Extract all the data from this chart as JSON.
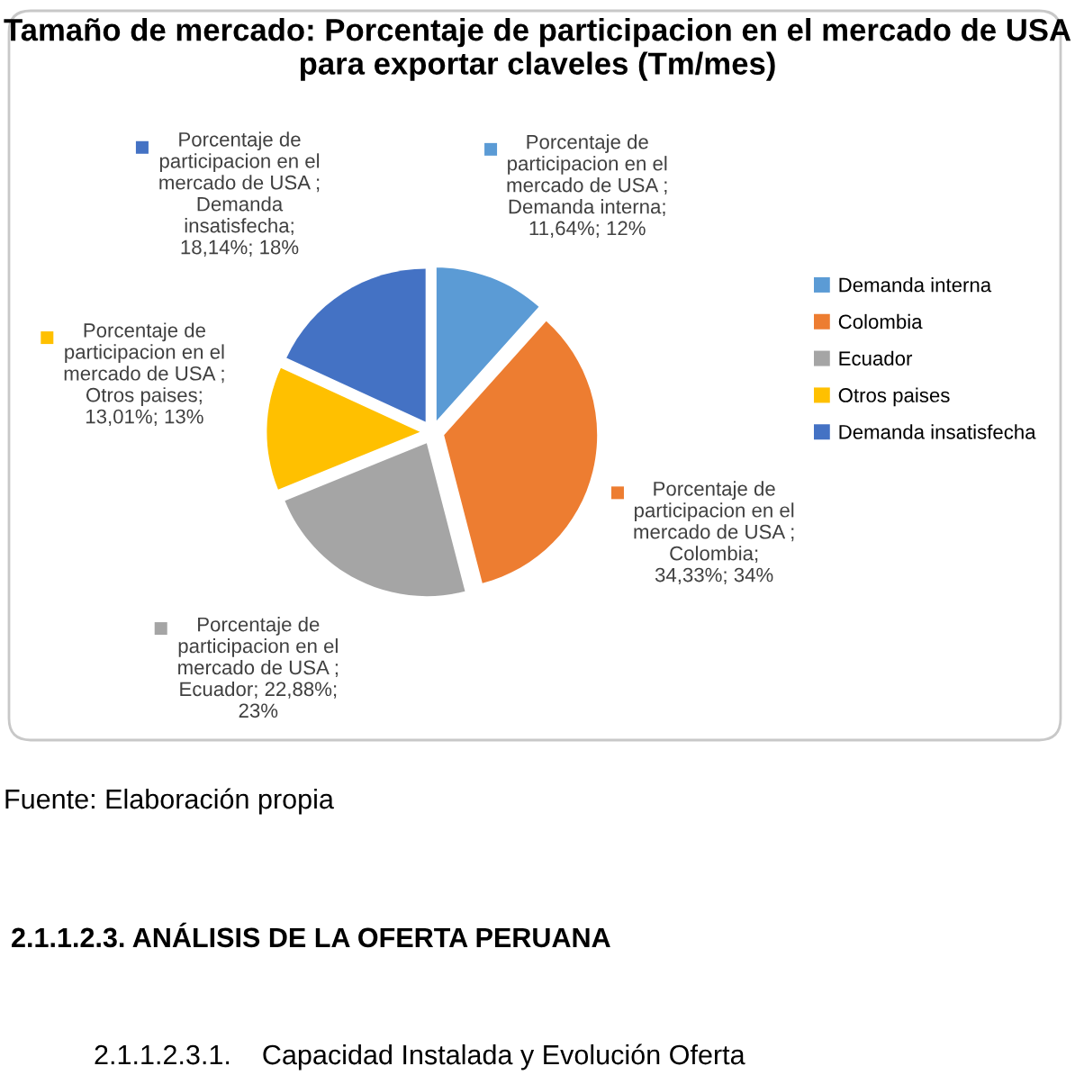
{
  "chart_data": {
    "type": "pie",
    "title": "Tamaño de mercado: Porcentaje de participacion en el mercado de USA para exportar claveles (Tm/mes)",
    "categories": [
      "Demanda interna",
      "Colombia",
      "Ecuador",
      "Otros paises",
      "Demanda insatisfecha"
    ],
    "values": [
      11.64,
      34.33,
      22.88,
      13.01,
      18.14
    ],
    "colors": [
      "#5b9bd5",
      "#ed7d31",
      "#a5a5a5",
      "#ffc000",
      "#4472c4"
    ],
    "value_labels": [
      "Porcentaje de\nparticipacion en el\nmercado de USA ;\nDemanda interna;\n11,64%; 12%",
      "Porcentaje de\nparticipacion en el\nmercado de USA ;\nColombia;\n34,33%; 34%",
      "Porcentaje de\nparticipacion en el\nmercado de USA ;\nEcuador; 22,88%;\n23%",
      "Porcentaje de\nparticipacion en el\nmercado de USA ;\nOtros paises;\n13,01%; 13%",
      "Porcentaje de\nparticipacion en el\nmercado de USA ;\nDemanda\ninsatisfecha;\n18,14%; 18%"
    ],
    "legend": "right",
    "annotations": [
      "Fuente: Elaboración propia",
      "2.1.1.2.3. ANÁLISIS DE LA OFERTA PERUANA",
      "2.1.1.2.3.1.    Capacidad Instalada y Evolución Oferta"
    ]
  }
}
